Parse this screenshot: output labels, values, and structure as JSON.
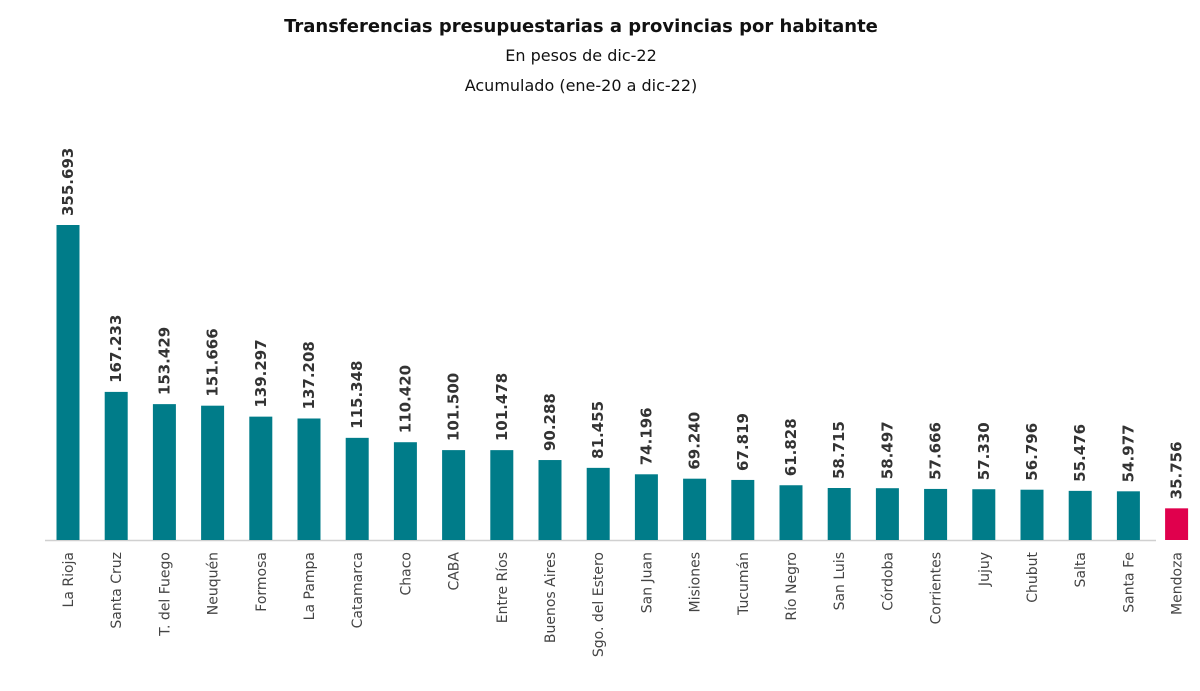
{
  "chart_data": {
    "type": "bar",
    "title": "Transferencias presupuestarias a provincias por habitante",
    "subtitle": "En pesos de dic-22",
    "subtitle2": "Acumulado (ene-20 a dic-22)",
    "categories": [
      "La Rioja",
      "Santa Cruz",
      "T. del Fuego",
      "Neuquén",
      "Formosa",
      "La Pampa",
      "Catamarca",
      "Chaco",
      "CABA",
      "Entre Ríos",
      "Buenos Aires",
      "Sgo. del Estero",
      "San Juan",
      "Misiones",
      "Tucumán",
      "Río Negro",
      "San Luis",
      "Córdoba",
      "Corrientes",
      "Jujuy",
      "Chubut",
      "Salta",
      "Santa Fe",
      "Mendoza"
    ],
    "values": [
      355693,
      167233,
      153429,
      151666,
      139297,
      137208,
      115348,
      110420,
      101500,
      101478,
      90288,
      81455,
      74196,
      69240,
      67819,
      61828,
      58715,
      58497,
      57666,
      57330,
      56796,
      55476,
      54977,
      35756
    ],
    "labels": [
      "355.693",
      "167.233",
      "153.429",
      "151.666",
      "139.297",
      "137.208",
      "115.348",
      "110.420",
      "101.500",
      "101.478",
      "90.288",
      "81.455",
      "74.196",
      "69.240",
      "67.819",
      "61.828",
      "58.715",
      "58.497",
      "57.666",
      "57.330",
      "56.796",
      "55.476",
      "54.977",
      "35.756"
    ],
    "ylim": [
      0,
      360000
    ],
    "grid": false,
    "colors": {
      "default": "#007C89",
      "highlight": "#E0004D",
      "highlight_category": "Mendoza"
    }
  }
}
